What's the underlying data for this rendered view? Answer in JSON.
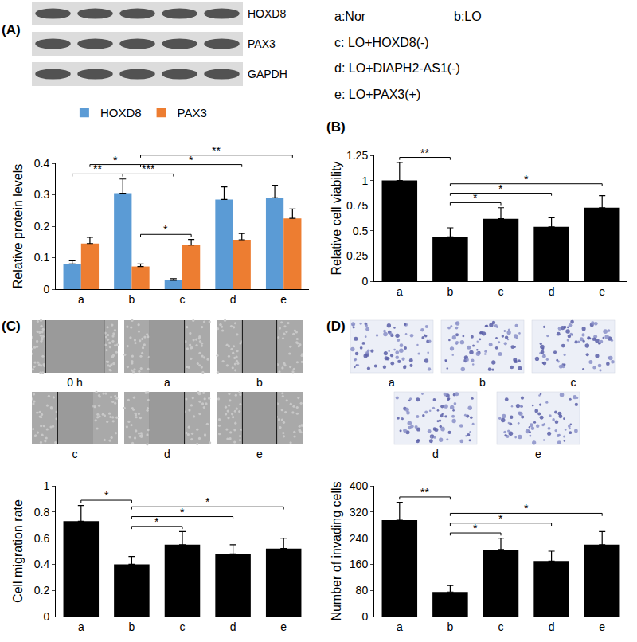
{
  "chart_data": [
    {
      "panel": "(A)",
      "type": "bar",
      "categories": [
        "a",
        "b",
        "c",
        "d",
        "e"
      ],
      "series": [
        {
          "name": "HOXD8",
          "color": "#5b9bd5",
          "values": [
            0.08,
            0.305,
            0.028,
            0.285,
            0.29
          ],
          "error": [
            0.01,
            0.045,
            0.005,
            0.04,
            0.04
          ]
        },
        {
          "name": "PAX3",
          "color": "#ed7d31",
          "values": [
            0.145,
            0.072,
            0.14,
            0.157,
            0.225
          ],
          "error": [
            0.02,
            0.008,
            0.018,
            0.02,
            0.03
          ]
        }
      ],
      "y_label": "Relative protein levels",
      "ylim": [
        0,
        0.4
      ],
      "yticks": [
        0,
        0.1,
        0.2,
        0.3,
        0.4
      ],
      "grid": false,
      "legend": "top",
      "significance": [
        {
          "series": "HOXD8",
          "from": "a",
          "to": "b",
          "label": "**"
        },
        {
          "series": "PAX3",
          "from": "a",
          "to": "b",
          "label": "*"
        },
        {
          "series": "HOXD8",
          "from": "b",
          "to": "c",
          "label": "***"
        },
        {
          "series": "PAX3",
          "from": "b",
          "to": "c",
          "label": "*"
        },
        {
          "series": "PAX3",
          "from": "b",
          "to": "d",
          "label": "*"
        },
        {
          "series": "PAX3",
          "from": "b",
          "to": "e",
          "label": "**"
        }
      ]
    },
    {
      "panel": "(B)",
      "type": "bar",
      "categories": [
        "a",
        "b",
        "c",
        "d",
        "e"
      ],
      "color": "#000000",
      "values": [
        1.0,
        0.44,
        0.62,
        0.54,
        0.73
      ],
      "error": [
        0.18,
        0.09,
        0.11,
        0.09,
        0.12
      ],
      "y_label": "Relative cell viability",
      "ylim": [
        0,
        1.25
      ],
      "yticks": [
        0,
        0.25,
        0.5,
        0.75,
        1,
        1.25
      ],
      "grid": false,
      "significance": [
        {
          "from": "a",
          "to": "b",
          "label": "**"
        },
        {
          "from": "b",
          "to": "c",
          "label": "*"
        },
        {
          "from": "b",
          "to": "d",
          "label": "*"
        },
        {
          "from": "b",
          "to": "e",
          "label": "*"
        }
      ]
    },
    {
      "panel": "(C)",
      "type": "bar",
      "categories": [
        "a",
        "b",
        "c",
        "d",
        "e"
      ],
      "color": "#000000",
      "values": [
        0.73,
        0.4,
        0.55,
        0.48,
        0.52
      ],
      "error": [
        0.12,
        0.06,
        0.1,
        0.07,
        0.08
      ],
      "y_label": "Cell migration rate",
      "ylim": [
        0,
        1
      ],
      "yticks": [
        0,
        0.2,
        0.4,
        0.6,
        0.8,
        1
      ],
      "grid": false,
      "significance": [
        {
          "from": "a",
          "to": "b",
          "label": "*"
        },
        {
          "from": "b",
          "to": "c",
          "label": "*"
        },
        {
          "from": "b",
          "to": "d",
          "label": "*"
        },
        {
          "from": "b",
          "to": "e",
          "label": "*"
        }
      ]
    },
    {
      "panel": "(D)",
      "type": "bar",
      "categories": [
        "a",
        "b",
        "c",
        "d",
        "e"
      ],
      "color": "#000000",
      "values": [
        295,
        75,
        205,
        170,
        220
      ],
      "error": [
        55,
        20,
        35,
        30,
        40
      ],
      "y_label": "Number of invading cells",
      "ylim": [
        0,
        400
      ],
      "yticks": [
        0,
        80,
        160,
        240,
        320,
        400
      ],
      "grid": false,
      "significance": [
        {
          "from": "a",
          "to": "b",
          "label": "**"
        },
        {
          "from": "b",
          "to": "c",
          "label": "*"
        },
        {
          "from": "b",
          "to": "d",
          "label": "*"
        },
        {
          "from": "b",
          "to": "e",
          "label": "*"
        }
      ]
    }
  ],
  "groups": [
    "a:Nor",
    "b:LO",
    "c: LO+HOXD8(-)",
    "d: LO+DIAPH2-AS1(-)",
    "e: LO+PAX3(+)"
  ],
  "blot": {
    "bands": [
      "HOXD8",
      "PAX3",
      "GAPDH"
    ]
  },
  "wound_healing": {
    "labels": [
      "0 h",
      "a",
      "b",
      "c",
      "d",
      "e"
    ]
  },
  "transwell": {
    "labels": [
      "a",
      "b",
      "c",
      "d",
      "e"
    ]
  }
}
